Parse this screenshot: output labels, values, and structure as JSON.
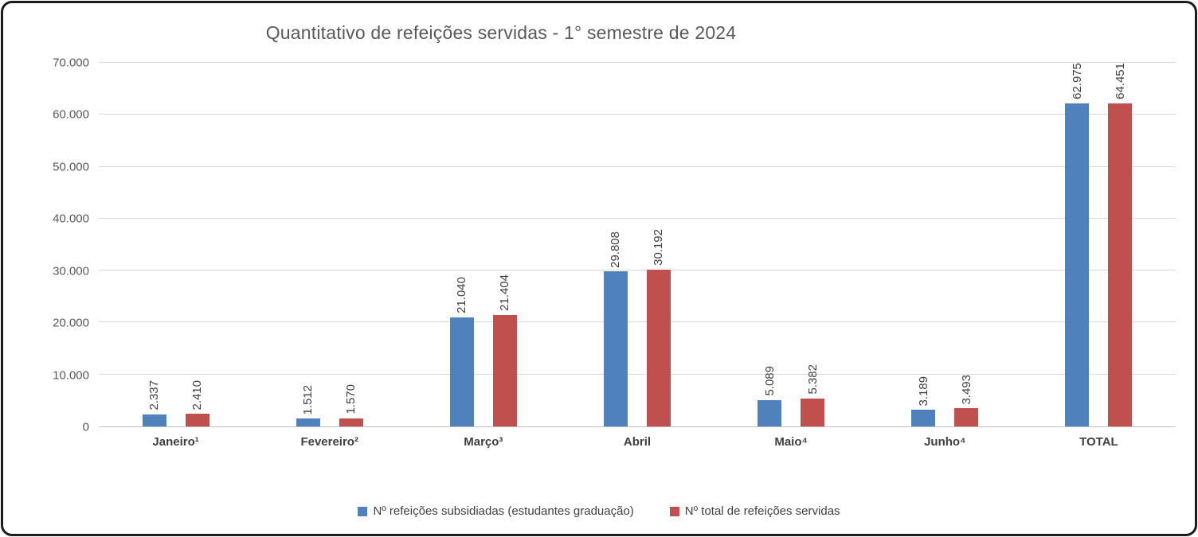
{
  "window": {
    "background": "#ffffff",
    "border_color": "#1c1c1c"
  },
  "chart_data": {
    "type": "bar",
    "title": "Quantitativo de refeições servidas - 1° semestre de 2024",
    "title_color": "#595959",
    "categories": [
      "Janeiro¹",
      "Fevereiro²",
      "Março³",
      "Abril",
      "Maio⁴",
      "Junho⁴",
      "TOTAL"
    ],
    "series": [
      {
        "name": "Nº refeições subsidiadas (estudantes graduação)",
        "color": "#4F81BD",
        "values": [
          2337,
          1512,
          21040,
          29808,
          5089,
          3189,
          62975
        ],
        "value_labels": [
          "2.337",
          "1.512",
          "21.040",
          "29.808",
          "5.089",
          "3.189",
          "62.975"
        ]
      },
      {
        "name": "Nº total de refeições servidas",
        "color": "#C0504D",
        "values": [
          2410,
          1570,
          21404,
          30192,
          5382,
          3493,
          64451
        ],
        "value_labels": [
          "2.410",
          "1.570",
          "21.404",
          "30.192",
          "5.382",
          "3.493",
          "64.451"
        ]
      }
    ],
    "ylim": [
      0,
      70000
    ],
    "ytick_step": 10000,
    "ytick_labels": [
      "0",
      "10.000",
      "20.000",
      "30.000",
      "40.000",
      "50.000",
      "60.000",
      "70.000"
    ],
    "grid": true,
    "gridline_color": "#d9d9d9",
    "axis_line_color": "#bfbfbf",
    "legend_position": "bottom",
    "value_label_rotation": 90,
    "thousands_separator": "."
  }
}
